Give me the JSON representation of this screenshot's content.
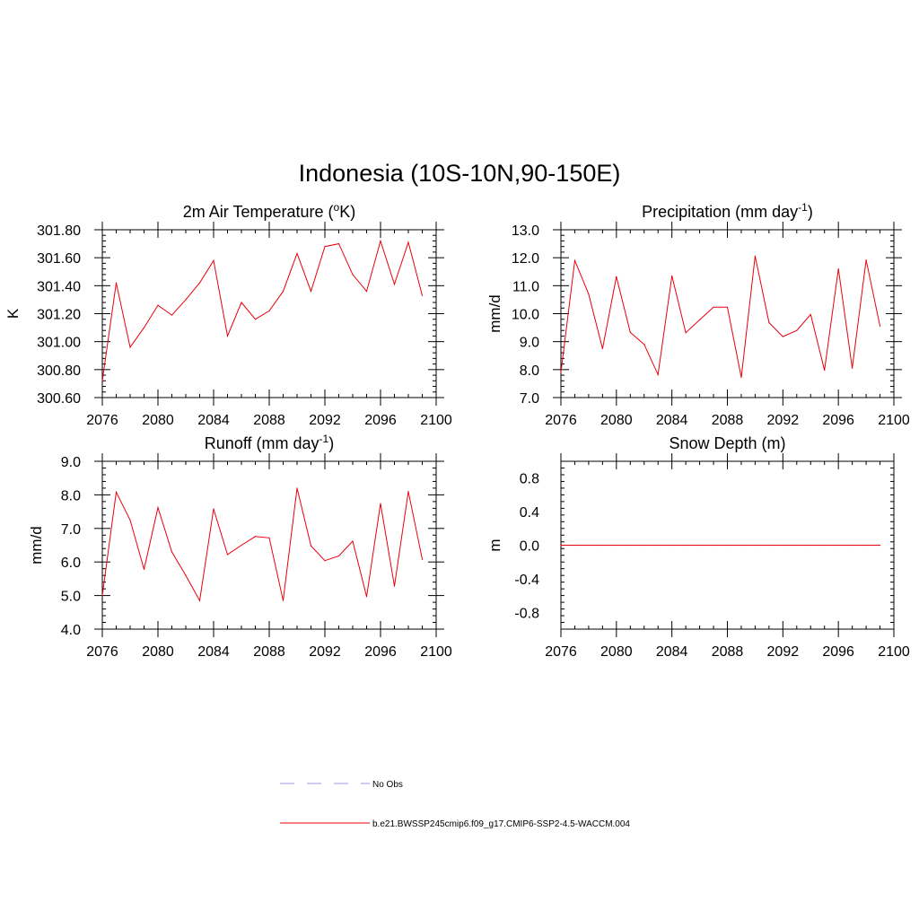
{
  "title": "Indonesia (10S-10N,90-150E)",
  "colors": {
    "series": "#e8000b",
    "obs": "#9999dd",
    "axis": "#000000"
  },
  "legend": [
    {
      "label": "No Obs",
      "style": "dashed",
      "color": "#9999dd"
    },
    {
      "label": "b.e21.BWSSP245cmip6.f09_g17.CMIP6-SSP2-4.5-WACCM.004",
      "style": "solid",
      "color": "#e8000b"
    }
  ],
  "chart_data": [
    {
      "type": "line",
      "title": "2m Air Temperature (",
      "title_sup": "o",
      "title_post": "K)",
      "ylabel": "K",
      "xlim": [
        2076,
        2100
      ],
      "ylim": [
        300.6,
        301.8
      ],
      "xticks": [
        2076,
        2080,
        2084,
        2088,
        2092,
        2096,
        2100
      ],
      "yticks": [
        300.6,
        300.8,
        301.0,
        301.2,
        301.4,
        301.6,
        301.8
      ],
      "ytick_labels": [
        "300.60",
        "300.80",
        "301.00",
        "301.20",
        "301.40",
        "301.60",
        "301.80"
      ],
      "x": [
        2076,
        2077,
        2078,
        2079,
        2080,
        2081,
        2082,
        2083,
        2084,
        2085,
        2086,
        2087,
        2088,
        2089,
        2090,
        2091,
        2092,
        2093,
        2094,
        2095,
        2096,
        2097,
        2098,
        2099
      ],
      "series": [
        {
          "values": [
            300.72,
            301.42,
            300.96,
            301.1,
            301.26,
            301.19,
            301.3,
            301.42,
            301.58,
            301.04,
            301.28,
            301.16,
            301.22,
            301.36,
            301.63,
            301.36,
            301.68,
            301.7,
            301.48,
            301.36,
            301.72,
            301.41,
            301.71,
            301.33
          ]
        }
      ]
    },
    {
      "type": "line",
      "title": "Precipitation (mm day",
      "title_sup": "-1",
      "title_post": ")",
      "ylabel": "mm/d",
      "xlim": [
        2076,
        2100
      ],
      "ylim": [
        7.0,
        13.0
      ],
      "xticks": [
        2076,
        2080,
        2084,
        2088,
        2092,
        2096,
        2100
      ],
      "yticks": [
        7,
        8,
        9,
        10,
        11,
        12,
        13
      ],
      "ytick_labels": [
        "7.0",
        "8.0",
        "9.0",
        "10.0",
        "11.0",
        "12.0",
        "13.0"
      ],
      "x": [
        2076,
        2077,
        2078,
        2079,
        2080,
        2081,
        2082,
        2083,
        2084,
        2085,
        2086,
        2087,
        2088,
        2089,
        2090,
        2091,
        2092,
        2093,
        2094,
        2095,
        2096,
        2097,
        2098,
        2099
      ],
      "series": [
        {
          "values": [
            7.9,
            11.9,
            10.7,
            8.75,
            11.32,
            9.33,
            8.9,
            7.82,
            11.35,
            9.32,
            9.78,
            10.23,
            10.23,
            7.72,
            12.06,
            9.68,
            9.18,
            9.4,
            9.97,
            7.98,
            11.6,
            8.05,
            11.92,
            9.56
          ]
        }
      ]
    },
    {
      "type": "line",
      "title": "Runoff (mm day",
      "title_sup": "-1",
      "title_post": ")",
      "ylabel": "mm/d",
      "xlim": [
        2076,
        2100
      ],
      "ylim": [
        4.0,
        9.0
      ],
      "xticks": [
        2076,
        2080,
        2084,
        2088,
        2092,
        2096,
        2100
      ],
      "yticks": [
        4,
        5,
        6,
        7,
        8,
        9
      ],
      "ytick_labels": [
        "4.0",
        "5.0",
        "6.0",
        "7.0",
        "8.0",
        "9.0"
      ],
      "x": [
        2076,
        2077,
        2078,
        2079,
        2080,
        2081,
        2082,
        2083,
        2084,
        2085,
        2086,
        2087,
        2088,
        2089,
        2090,
        2091,
        2092,
        2093,
        2094,
        2095,
        2096,
        2097,
        2098,
        2099
      ],
      "series": [
        {
          "values": [
            5.0,
            8.08,
            7.25,
            5.78,
            7.62,
            6.3,
            5.6,
            4.85,
            7.58,
            6.22,
            6.5,
            6.76,
            6.72,
            4.85,
            8.2,
            6.48,
            6.04,
            6.18,
            6.62,
            4.97,
            7.74,
            5.28,
            8.1,
            6.08
          ]
        }
      ]
    },
    {
      "type": "line",
      "title": "Snow Depth (m)",
      "title_sup": "",
      "title_post": "",
      "ylabel": "m",
      "xlim": [
        2076,
        2100
      ],
      "ylim": [
        -1.0,
        1.0
      ],
      "xticks": [
        2076,
        2080,
        2084,
        2088,
        2092,
        2096,
        2100
      ],
      "yticks": [
        -0.8,
        -0.4,
        0.0,
        0.4,
        0.8
      ],
      "ytick_labels": [
        "-0.8",
        "-0.4",
        "0.0",
        "0.4",
        "0.8"
      ],
      "x": [
        2076,
        2077,
        2078,
        2079,
        2080,
        2081,
        2082,
        2083,
        2084,
        2085,
        2086,
        2087,
        2088,
        2089,
        2090,
        2091,
        2092,
        2093,
        2094,
        2095,
        2096,
        2097,
        2098,
        2099
      ],
      "series": [
        {
          "values": [
            0,
            0,
            0,
            0,
            0,
            0,
            0,
            0,
            0,
            0,
            0,
            0,
            0,
            0,
            0,
            0,
            0,
            0,
            0,
            0,
            0,
            0,
            0,
            0
          ]
        }
      ]
    }
  ]
}
